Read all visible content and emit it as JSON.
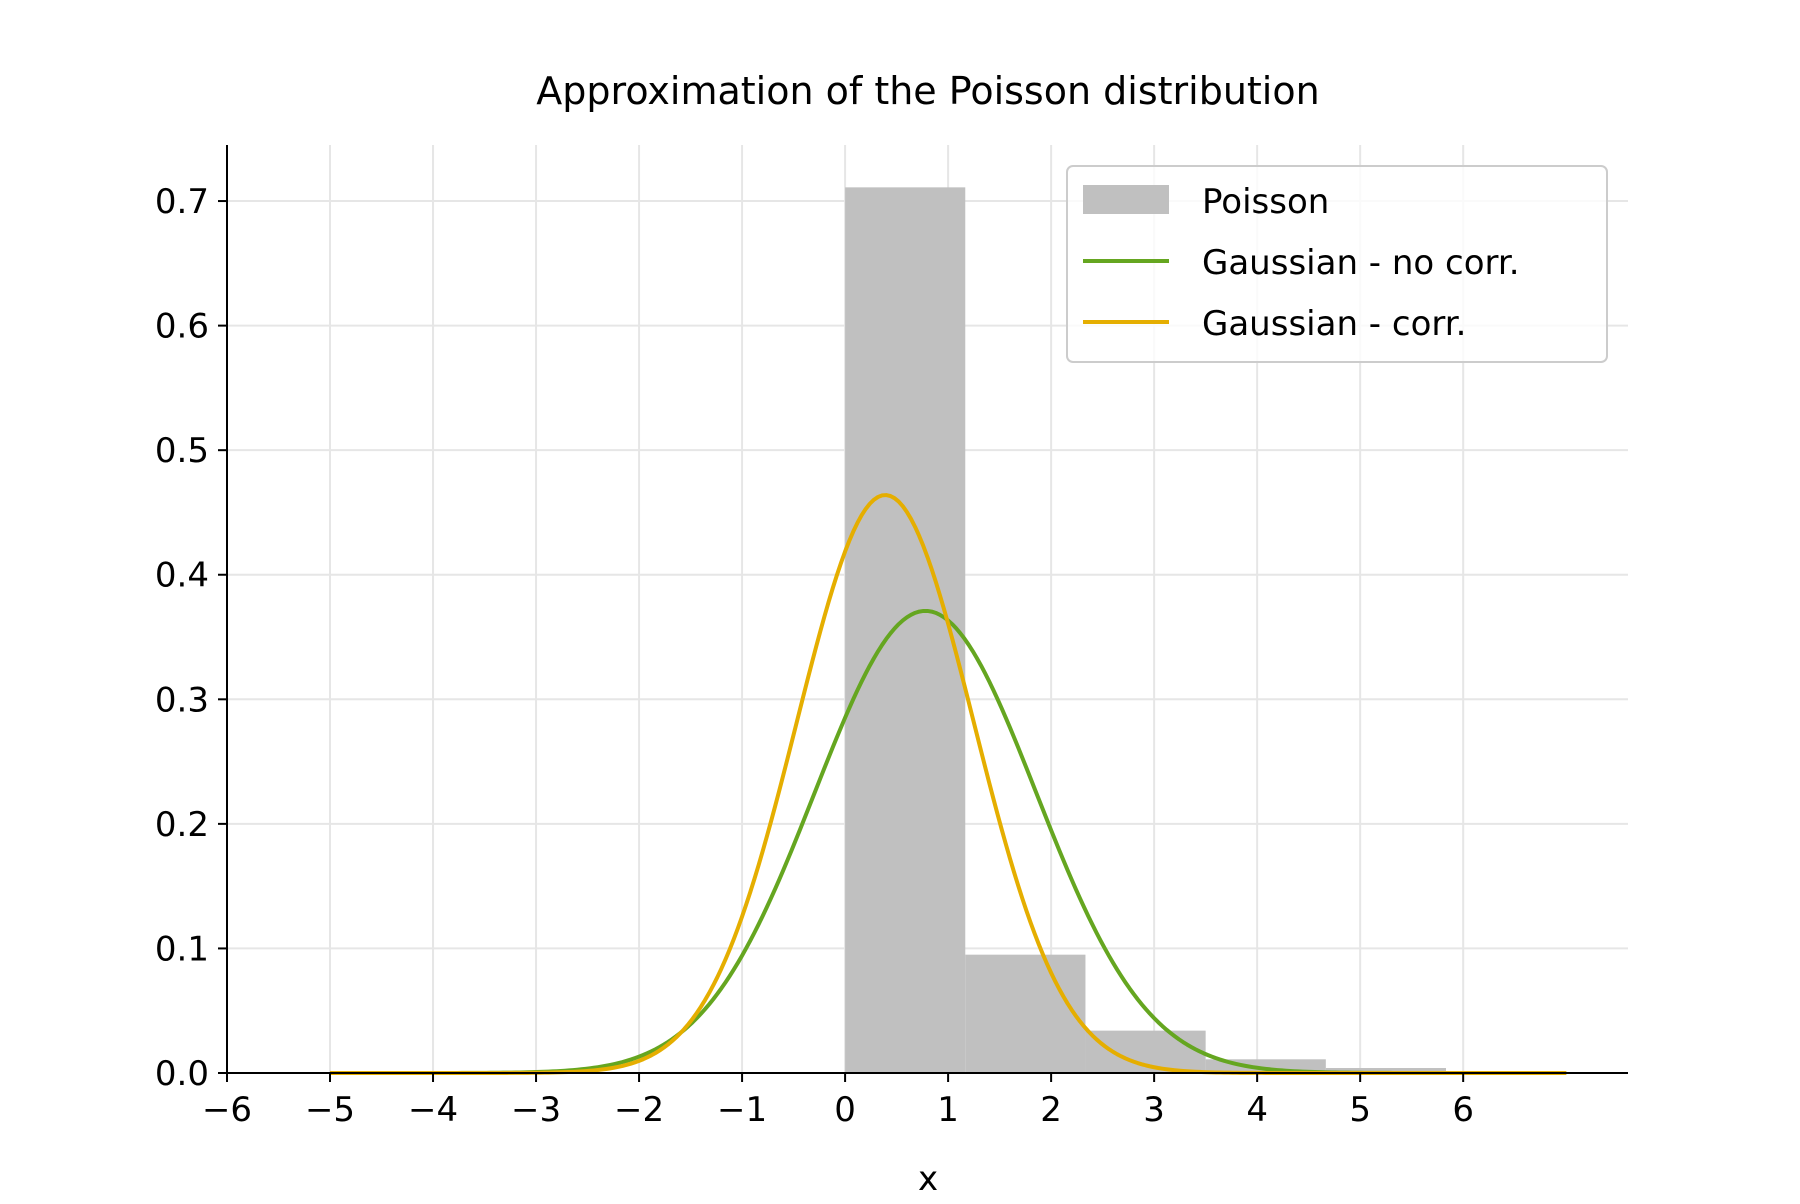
{
  "chart_data": {
    "type": "histogram-with-lines",
    "title": "Approximation of the Poisson distribution",
    "xlabel": "x",
    "ylabel": "",
    "xlim": [
      -6,
      7.6
    ],
    "ylim": [
      0,
      0.745
    ],
    "grid": true,
    "x_ticks": [
      -6,
      -5,
      -4,
      -3,
      -2,
      -1,
      0,
      1,
      2,
      3,
      4,
      5,
      6
    ],
    "x_tick_labels": [
      "−6",
      "−5",
      "−4",
      "−3",
      "−2",
      "−1",
      "0",
      "1",
      "2",
      "3",
      "4",
      "5",
      "6"
    ],
    "y_ticks": [
      0,
      0.1,
      0.2,
      0.3,
      0.4,
      0.5,
      0.6,
      0.7
    ],
    "y_tick_labels": [
      "0.0",
      "0.1",
      "0.2",
      "0.3",
      "0.4",
      "0.5",
      "0.6",
      "0.7"
    ],
    "legend_position": "top-right",
    "histogram": {
      "name": "Poisson",
      "color": "#c0c0c0",
      "bin_edges": [
        0,
        1.1667,
        2.3333,
        3.5,
        4.6667,
        5.8333,
        7.0
      ],
      "values": [
        0.711,
        0.095,
        0.034,
        0.011,
        0.004,
        0.0015
      ]
    },
    "series": [
      {
        "name": "Gaussian - no corr.",
        "color": "#65a620",
        "mean": 0.78,
        "peak": 0.371,
        "x_range": [
          -5,
          7
        ]
      },
      {
        "name": "Gaussian - corr.",
        "color": "#e5ae00",
        "mean": 0.39,
        "peak": 0.464,
        "x_range": [
          -5,
          7
        ]
      }
    ]
  }
}
